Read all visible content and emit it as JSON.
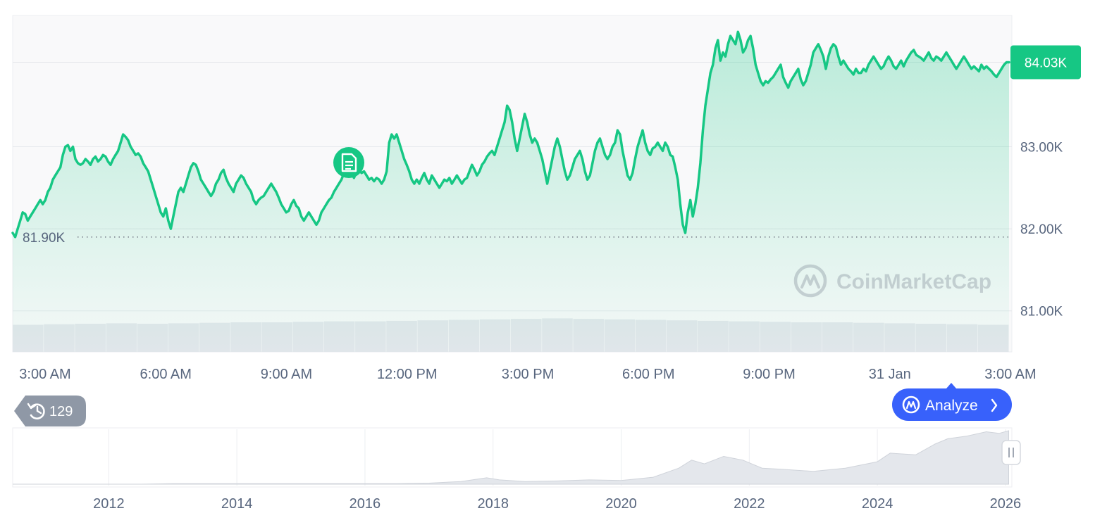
{
  "chart_data": {
    "type": "area",
    "title": "",
    "xlabel": "",
    "ylabel": "",
    "line_color": "#16c784",
    "fill_color": "#16c784",
    "ylim": [
      80.5,
      84.6
    ],
    "y_ticks": [
      "84.03K",
      "83.00K",
      "82.00K",
      "81.00K"
    ],
    "y_tick_values": [
      84.03,
      83.0,
      82.0,
      81.0
    ],
    "x_ticks": [
      "3:00 AM",
      "6:00 AM",
      "9:00 AM",
      "12:00 PM",
      "3:00 PM",
      "6:00 PM",
      "9:00 PM",
      "31 Jan",
      "3:00 AM"
    ],
    "grid": true,
    "current_price_label": "84.03K",
    "current_price_value": 84.03,
    "reference_price_label": "81.90K",
    "reference_price_value": 81.9,
    "series": [
      {
        "values": [
          81.95,
          81.9,
          82.0,
          82.1,
          82.2,
          82.18,
          82.1,
          82.15,
          82.2,
          82.25,
          82.3,
          82.35,
          82.3,
          82.35,
          82.45,
          82.5,
          82.6,
          82.65,
          82.7,
          82.75,
          82.9,
          83.0,
          83.02,
          82.95,
          83.0,
          82.85,
          82.8,
          82.78,
          82.8,
          82.85,
          82.82,
          82.78,
          82.85,
          82.88,
          82.82,
          82.85,
          82.9,
          82.88,
          82.82,
          82.78,
          82.85,
          82.9,
          82.95,
          83.05,
          83.15,
          83.12,
          83.08,
          83.0,
          82.95,
          82.9,
          82.92,
          82.88,
          82.8,
          82.75,
          82.7,
          82.6,
          82.5,
          82.4,
          82.3,
          82.2,
          82.15,
          82.25,
          82.1,
          82.0,
          82.15,
          82.3,
          82.45,
          82.5,
          82.45,
          82.55,
          82.65,
          82.75,
          82.8,
          82.78,
          82.7,
          82.6,
          82.55,
          82.5,
          82.45,
          82.4,
          82.45,
          82.55,
          82.6,
          82.68,
          82.72,
          82.62,
          82.55,
          82.5,
          82.45,
          82.55,
          82.6,
          82.65,
          82.62,
          82.55,
          82.5,
          82.45,
          82.35,
          82.3,
          82.35,
          82.38,
          82.4,
          82.45,
          82.5,
          82.55,
          82.5,
          82.45,
          82.38,
          82.3,
          82.25,
          82.2,
          82.22,
          82.3,
          82.35,
          82.28,
          82.25,
          82.15,
          82.1,
          82.15,
          82.2,
          82.15,
          82.1,
          82.05,
          82.1,
          82.2,
          82.25,
          82.3,
          82.35,
          82.38,
          82.45,
          82.5,
          82.55,
          82.6,
          82.68,
          82.72,
          82.65,
          82.68,
          82.62,
          82.7,
          82.72,
          82.68,
          82.7,
          82.65,
          82.6,
          82.62,
          82.58,
          82.62,
          82.6,
          82.55,
          82.6,
          82.7,
          83.05,
          83.15,
          83.1,
          83.15,
          83.05,
          82.95,
          82.85,
          82.78,
          82.7,
          82.6,
          82.55,
          82.6,
          82.55,
          82.62,
          82.68,
          82.6,
          82.55,
          82.65,
          82.6,
          82.55,
          82.5,
          82.55,
          82.6,
          82.58,
          82.62,
          82.55,
          82.6,
          82.65,
          82.6,
          82.55,
          82.6,
          82.62,
          82.7,
          82.78,
          82.72,
          82.65,
          82.7,
          82.78,
          82.82,
          82.88,
          82.92,
          82.95,
          82.9,
          83.0,
          83.1,
          83.2,
          83.3,
          83.5,
          83.45,
          83.3,
          83.1,
          82.95,
          83.1,
          83.25,
          83.4,
          83.3,
          83.15,
          83.05,
          83.1,
          83.05,
          82.95,
          82.85,
          82.7,
          82.55,
          82.7,
          82.85,
          83.0,
          83.1,
          83.0,
          82.85,
          82.7,
          82.6,
          82.65,
          82.75,
          82.85,
          82.9,
          82.95,
          82.85,
          82.7,
          82.6,
          82.65,
          82.8,
          82.95,
          83.05,
          83.1,
          83.0,
          82.9,
          82.85,
          82.9,
          83.0,
          83.05,
          83.2,
          83.15,
          82.95,
          82.8,
          82.65,
          82.6,
          82.68,
          82.85,
          83.0,
          83.1,
          83.2,
          83.05,
          82.95,
          82.9,
          82.98,
          83.0,
          83.05,
          83.0,
          82.95,
          83.05,
          83.0,
          82.9,
          82.88,
          82.75,
          82.6,
          82.3,
          82.05,
          81.95,
          82.2,
          82.35,
          82.15,
          82.3,
          82.5,
          82.8,
          83.2,
          83.5,
          83.7,
          83.9,
          84.0,
          84.2,
          84.3,
          84.05,
          84.15,
          84.1,
          84.25,
          84.35,
          84.3,
          84.25,
          84.4,
          84.3,
          84.15,
          84.2,
          84.3,
          84.35,
          84.2,
          84.0,
          83.9,
          83.8,
          83.75,
          83.8,
          83.78,
          83.82,
          83.85,
          83.9,
          83.95,
          84.0,
          83.85,
          83.78,
          83.72,
          83.8,
          83.85,
          83.9,
          83.95,
          83.82,
          83.75,
          83.8,
          83.9,
          84.0,
          84.15,
          84.2,
          84.25,
          84.18,
          84.1,
          83.95,
          84.1,
          84.2,
          84.25,
          84.22,
          84.1,
          84.0,
          84.05,
          84.0,
          83.95,
          83.92,
          83.88,
          83.95,
          83.9,
          83.9,
          83.95,
          83.92,
          84.0,
          84.05,
          84.1,
          84.05,
          84.0,
          83.95,
          83.98,
          84.05,
          84.1,
          84.05,
          83.98,
          83.95,
          84.0,
          84.05,
          83.98,
          84.05,
          84.1,
          84.15,
          84.18,
          84.12,
          84.1,
          84.08,
          84.05,
          84.1,
          84.15,
          84.08,
          84.05,
          84.1,
          84.08,
          84.05,
          84.1,
          84.15,
          84.1,
          84.05,
          84.0,
          83.95,
          84.0,
          84.05,
          84.1,
          84.05,
          84.0,
          83.95,
          83.98,
          83.95,
          83.92,
          84.0,
          83.95,
          83.98,
          83.95,
          83.92,
          83.88,
          83.85,
          83.9,
          83.95,
          84.0,
          84.03,
          84.03
        ]
      }
    ],
    "volume": {
      "color": "#e4e7ec",
      "note": "per-interval volume bars, roughly uniform",
      "values": [
        0.55,
        0.56,
        0.57,
        0.58,
        0.57,
        0.58,
        0.59,
        0.6,
        0.6,
        0.61,
        0.62,
        0.62,
        0.63,
        0.64,
        0.65,
        0.66,
        0.67,
        0.68,
        0.67,
        0.66,
        0.65,
        0.64,
        0.63,
        0.62,
        0.61,
        0.6,
        0.6,
        0.59,
        0.58,
        0.57,
        0.56,
        0.55
      ]
    },
    "navigator": {
      "type": "area",
      "x_ticks": [
        "2012",
        "2014",
        "2016",
        "2018",
        "2020",
        "2022",
        "2024",
        "2026"
      ],
      "x_tick_values": [
        2012,
        2014,
        2016,
        2018,
        2020,
        2022,
        2024,
        2026
      ],
      "xlim": [
        2010.5,
        2026.1
      ],
      "x": [
        2010.5,
        2011,
        2011.5,
        2012,
        2012.5,
        2013,
        2013.5,
        2014,
        2014.5,
        2015,
        2015.5,
        2016,
        2016.5,
        2017,
        2017.5,
        2017.9,
        2018.1,
        2018.5,
        2019,
        2019.5,
        2020,
        2020.5,
        2020.9,
        2021.1,
        2021.3,
        2021.6,
        2021.9,
        2022.2,
        2022.5,
        2023,
        2023.5,
        2024,
        2024.2,
        2024.6,
        2024.9,
        2025.1,
        2025.4,
        2025.7,
        2025.9,
        2026.05
      ],
      "values": [
        0,
        0,
        0,
        0,
        0,
        0.01,
        0.01,
        0.01,
        0.01,
        0.01,
        0.01,
        0.01,
        0.01,
        0.02,
        0.05,
        0.12,
        0.08,
        0.05,
        0.06,
        0.08,
        0.07,
        0.13,
        0.3,
        0.45,
        0.38,
        0.52,
        0.45,
        0.3,
        0.28,
        0.24,
        0.3,
        0.42,
        0.58,
        0.55,
        0.75,
        0.85,
        0.9,
        0.98,
        0.95,
        1.0
      ]
    }
  },
  "watermark": {
    "text": "CoinMarketCap",
    "icon": "coinmarketcap-logo-icon"
  },
  "history_badge": {
    "icon": "history-icon",
    "count": "129"
  },
  "analyze_button": {
    "icon": "coinmarketcap-logo-icon",
    "label": "Analyze",
    "arrow": "chevron-right-icon",
    "color": "#3861fb"
  },
  "event_marker": {
    "icon": "document-icon",
    "color": "#16c784"
  },
  "navigator_handle": {
    "icon": "pause-handle-icon"
  }
}
